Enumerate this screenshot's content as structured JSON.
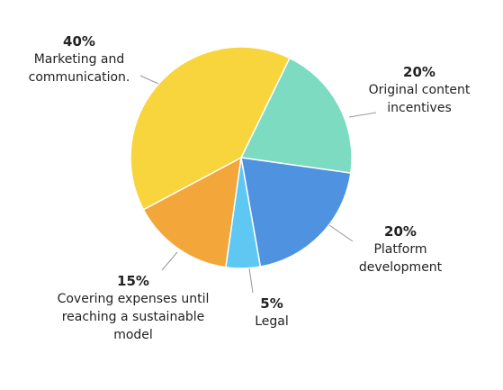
{
  "chart_data": {
    "type": "pie",
    "categories": [
      "Original content incentives",
      "Platform development",
      "Legal",
      "Covering expenses until reaching a sustainable model",
      "Marketing and communication."
    ],
    "values": [
      20,
      20,
      5,
      15,
      40
    ],
    "value_labels": [
      "20%",
      "20%",
      "5%",
      "15%",
      "40%"
    ],
    "colors": [
      "#7ddbc1",
      "#4f92e0",
      "#5ec8f3",
      "#f3a63a",
      "#f8d53c"
    ]
  }
}
